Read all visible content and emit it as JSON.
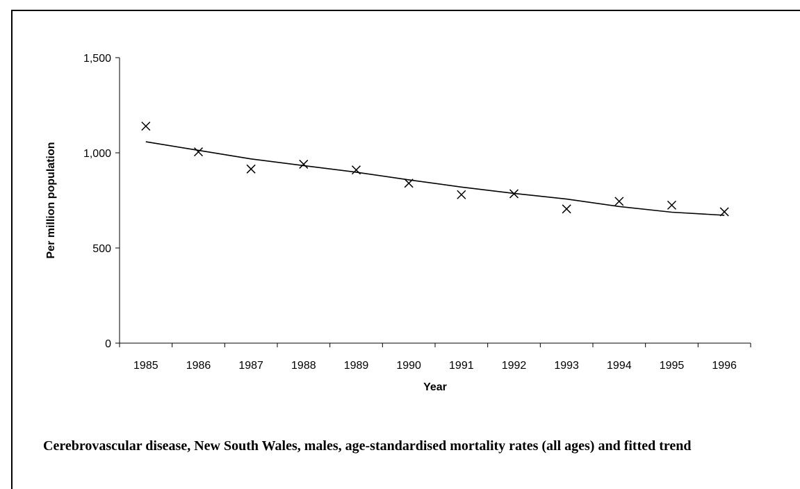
{
  "chart_data": {
    "type": "scatter",
    "title": "Cerebrovascular disease, New South Wales, males, age-standardised mortality rates (all ages) and fitted trend",
    "xlabel": "Year",
    "ylabel": "Per million population",
    "categories": [
      "1985",
      "1986",
      "1987",
      "1988",
      "1989",
      "1990",
      "1991",
      "1992",
      "1993",
      "1994",
      "1995",
      "1996"
    ],
    "ylim": [
      0,
      1500
    ],
    "yticks": [
      0,
      500,
      1000,
      1500
    ],
    "ytick_labels": [
      "0",
      "500",
      "1,000",
      "1,500"
    ],
    "grid": false,
    "legend": "none",
    "series": [
      {
        "marker": "x",
        "values": [
          1140,
          1005,
          915,
          940,
          910,
          840,
          780,
          785,
          705,
          745,
          725,
          690
        ]
      },
      {
        "line": "solid",
        "values": [
          1058,
          1013,
          968,
          933,
          898,
          858,
          820,
          787,
          757,
          718,
          688,
          672
        ]
      }
    ]
  }
}
